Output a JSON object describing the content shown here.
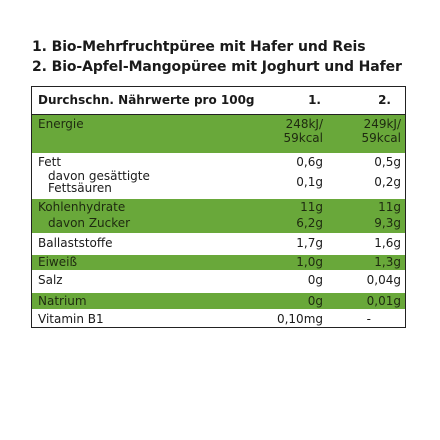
{
  "titles": [
    "1. Bio-Mehrfruchtpüree mit Hafer und Reis",
    "2. Bio-Apfel-Mangopüree  mit Joghurt und Hafer"
  ],
  "table": {
    "header": {
      "label": "Durchschn. Nährwerte pro 100g",
      "col1": "1.",
      "col2": "2."
    },
    "energie": {
      "label": "Energie",
      "col1_a": "248kJ/",
      "col1_b": "59kcal",
      "col2_a": "249kJ/",
      "col2_b": "59kcal"
    },
    "fett": {
      "label": "Fett",
      "col1": "0,6g",
      "col2": "0,5g"
    },
    "gesaettigt": {
      "label_a": "davon gesättigte",
      "label_b": "Fettsäuren",
      "col1": "0,1g",
      "col2": "0,2g"
    },
    "kohlenhydrate": {
      "label": "Kohlenhydrate",
      "col1": "11g",
      "col2": "11g"
    },
    "zucker": {
      "label": "davon Zucker",
      "col1": "6,2g",
      "col2": "9,3g"
    },
    "ballaststoffe": {
      "label": "Ballaststoffe",
      "col1": "1,7g",
      "col2": "1,6g"
    },
    "eiweiss": {
      "label": "Eiweiß",
      "col1": "1,0g",
      "col2": "1,3g"
    },
    "salz": {
      "label": "Salz",
      "col1": "0g",
      "col2": "0,04g"
    },
    "natrium": {
      "label": "Natrium",
      "col1": "0g",
      "col2": "0,01g"
    },
    "vitamin": {
      "label": "Vitamin B1",
      "col1": "0,10mg",
      "col2": "-"
    }
  },
  "colors": {
    "accent_green": "#69a83a",
    "border": "#222222"
  }
}
